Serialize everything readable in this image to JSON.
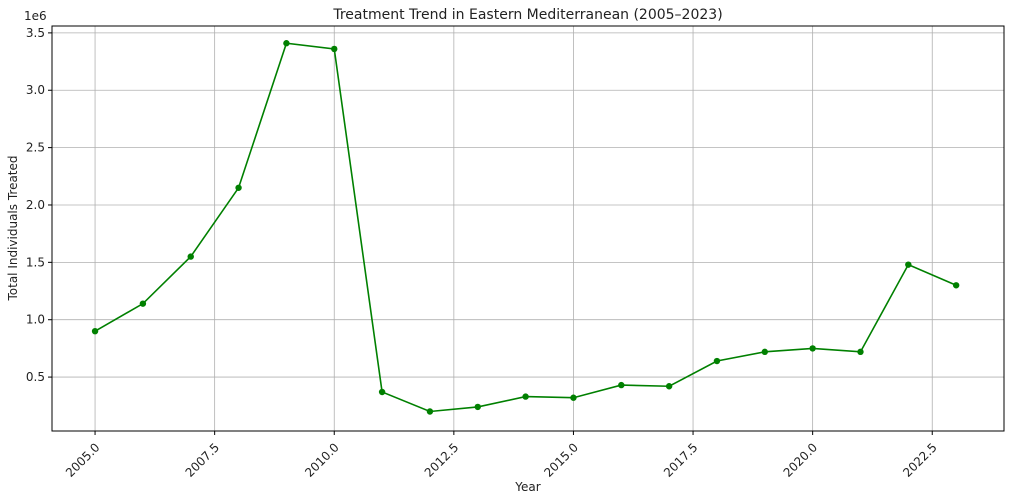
{
  "chart_data": {
    "type": "line",
    "title": "Treatment Trend in Eastern Mediterranean (2005–2023)",
    "xlabel": "Year",
    "ylabel": "Total Individuals Treated",
    "y_offset_label": "1e6",
    "xlim": [
      2004.1,
      2024.0
    ],
    "ylim": [
      0.03,
      3.56
    ],
    "x_ticks": [
      2005.0,
      2007.5,
      2010.0,
      2012.5,
      2015.0,
      2017.5,
      2020.0,
      2022.5
    ],
    "x_tick_labels": [
      "2005.0",
      "2007.5",
      "2010.0",
      "2012.5",
      "2015.0",
      "2017.5",
      "2020.0",
      "2022.5"
    ],
    "y_ticks": [
      0.5,
      1.0,
      1.5,
      2.0,
      2.5,
      3.0,
      3.5
    ],
    "y_tick_labels": [
      "0.5",
      "1.0",
      "1.5",
      "2.0",
      "2.5",
      "3.0",
      "3.5"
    ],
    "grid": true,
    "line_color": "#008000",
    "x": [
      2005,
      2006,
      2007,
      2008,
      2009,
      2010,
      2011,
      2012,
      2013,
      2014,
      2015,
      2016,
      2017,
      2018,
      2019,
      2020,
      2021,
      2022,
      2023
    ],
    "series": [
      {
        "values": [
          0.9,
          1.14,
          1.55,
          2.15,
          3.41,
          3.36,
          0.37,
          0.2,
          0.24,
          0.33,
          0.32,
          0.43,
          0.42,
          0.64,
          0.72,
          0.75,
          0.72,
          1.48,
          1.3
        ]
      }
    ]
  }
}
